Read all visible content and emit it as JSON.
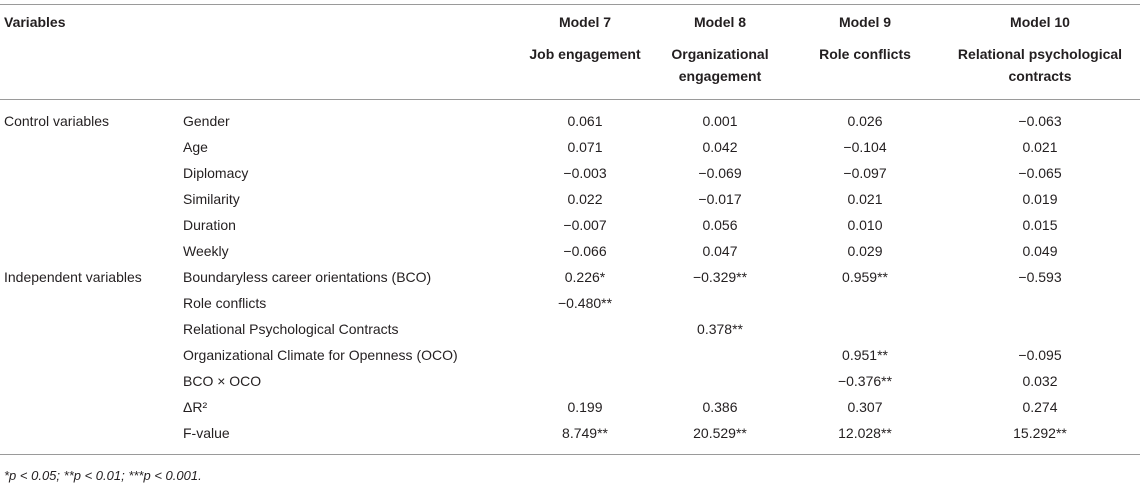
{
  "header": {
    "variables_label": "Variables",
    "models": [
      "Model 7",
      "Model 8",
      "Model 9",
      "Model 10"
    ],
    "dependents": [
      "Job engagement",
      "Organizational engagement",
      "Role conflicts",
      "Relational psychological contracts"
    ]
  },
  "rows": [
    {
      "group": "Control variables",
      "label": "Gender",
      "values": [
        "0.061",
        "0.001",
        "0.026",
        "−0.063"
      ]
    },
    {
      "group": "",
      "label": "Age",
      "values": [
        "0.071",
        "0.042",
        "−0.104",
        "0.021"
      ]
    },
    {
      "group": "",
      "label": "Diplomacy",
      "values": [
        "−0.003",
        "−0.069",
        "−0.097",
        "−0.065"
      ]
    },
    {
      "group": "",
      "label": "Similarity",
      "values": [
        "0.022",
        "−0.017",
        "0.021",
        "0.019"
      ]
    },
    {
      "group": "",
      "label": "Duration",
      "values": [
        "−0.007",
        "0.056",
        "0.010",
        "0.015"
      ]
    },
    {
      "group": "",
      "label": "Weekly",
      "values": [
        "−0.066",
        "0.047",
        "0.029",
        "0.049"
      ]
    },
    {
      "group": "Independent variables",
      "label": "Boundaryless career orientations (BCO)",
      "values": [
        "0.226*",
        "−0.329**",
        "0.959**",
        "−0.593"
      ]
    },
    {
      "group": "",
      "label": "Role conflicts",
      "values": [
        "−0.480**",
        "",
        "",
        ""
      ]
    },
    {
      "group": "",
      "label": "Relational Psychological Contracts",
      "values": [
        "",
        "0.378**",
        "",
        ""
      ]
    },
    {
      "group": "",
      "label": "Organizational Climate for Openness (OCO)",
      "values": [
        "",
        "",
        "0.951**",
        "−0.095"
      ]
    },
    {
      "group": "",
      "label": "BCO × OCO",
      "values": [
        "",
        "",
        "−0.376**",
        "0.032"
      ]
    },
    {
      "group": "",
      "label": "ΔR²",
      "values": [
        "0.199",
        "0.386",
        "0.307",
        "0.274"
      ]
    },
    {
      "group": "",
      "label": "F-value",
      "values": [
        "8.749**",
        "20.529**",
        "12.028**",
        "15.292**"
      ]
    }
  ],
  "footnote": "*p < 0.05; **p < 0.01; ***p < 0.001."
}
